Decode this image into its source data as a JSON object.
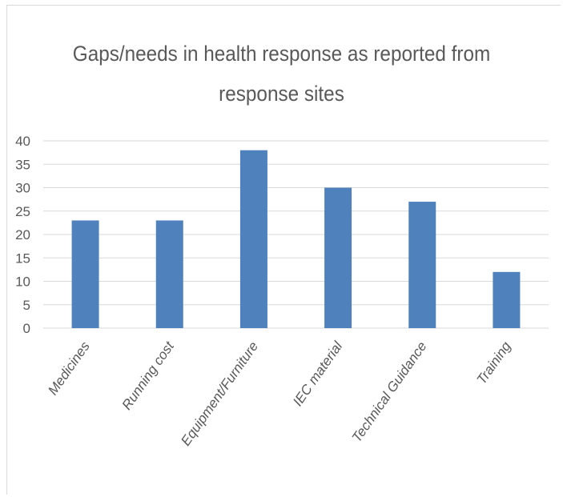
{
  "chart_data": {
    "type": "bar",
    "title": "Gaps/needs in health response as reported from response sites",
    "categories": [
      "Medicines",
      "Running cost",
      "Equipment/Furniture",
      "IEC material",
      "Technical Guidance",
      "Training"
    ],
    "series": [
      {
        "values": [
          23,
          23,
          38,
          30,
          27,
          12
        ]
      }
    ],
    "yticks": [
      0,
      5,
      10,
      15,
      20,
      25,
      30,
      35,
      40
    ],
    "ylim": [
      0,
      40
    ],
    "xlabel": "",
    "ylabel": "",
    "grid": true,
    "bar_color": "#4f81bd",
    "grid_color": "#d9d9d9",
    "text_color": "#595959"
  }
}
